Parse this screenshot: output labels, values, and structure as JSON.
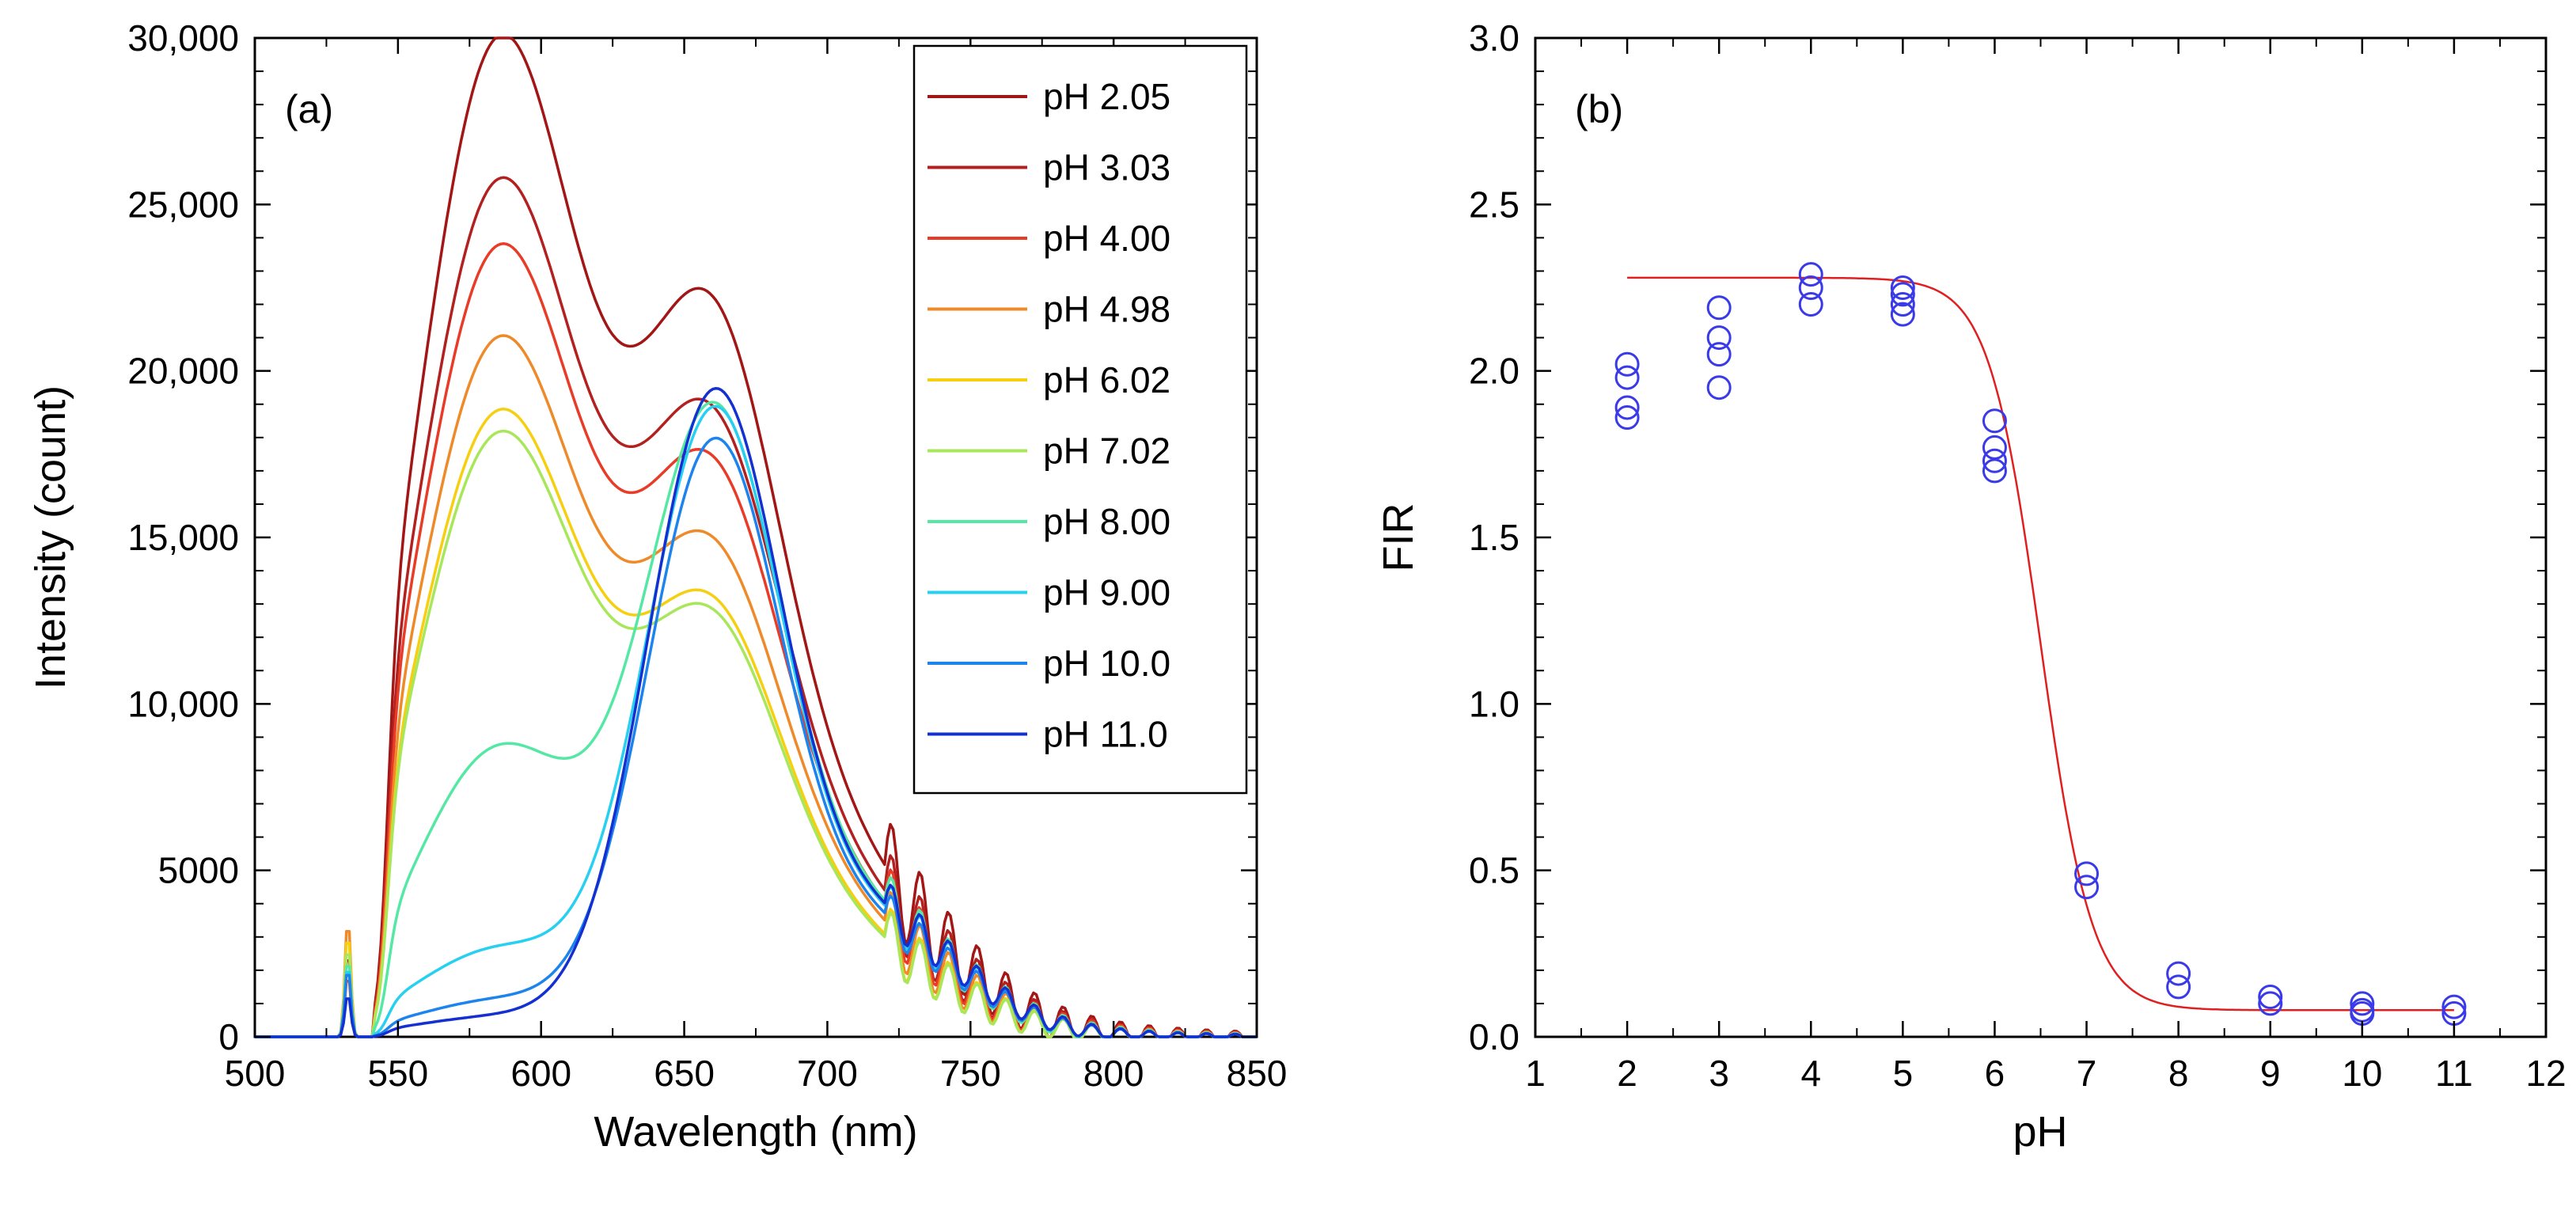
{
  "chart_data": [
    {
      "type": "line",
      "panel_label": "(a)",
      "xlabel": "Wavelength (nm)",
      "ylabel": "Intensity (count)",
      "xlim": [
        500,
        850
      ],
      "ylim": [
        0,
        30000
      ],
      "xticks": [
        500,
        550,
        600,
        650,
        700,
        750,
        800,
        850
      ],
      "xtick_labels": [
        "500",
        "550",
        "600",
        "650",
        "700",
        "750",
        "800",
        "850"
      ],
      "yticks": [
        0,
        5000,
        10000,
        15000,
        20000,
        25000,
        30000
      ],
      "ytick_labels": [
        "0",
        "5000",
        "10,000",
        "15,000",
        "20,000",
        "25,000",
        "30,000"
      ],
      "grid": false,
      "legend_position": "top-right",
      "series": [
        {
          "name": "pH 2.05",
          "color": "#a31616",
          "shape": {
            "peak1": 27300,
            "peak2": 13200,
            "sh": 2600
          }
        },
        {
          "name": "pH 3.03",
          "color": "#b32020",
          "shape": {
            "peak1": 23400,
            "peak2": 11200,
            "sh": 2200
          }
        },
        {
          "name": "pH 4.00",
          "color": "#e83c28",
          "shape": {
            "peak1": 21600,
            "peak2": 10300,
            "sh": 1900
          }
        },
        {
          "name": "pH 4.98",
          "color": "#ef8a2a",
          "shape": {
            "peak1": 19100,
            "peak2": 8700,
            "sh": 3600
          }
        },
        {
          "name": "pH 6.02",
          "color": "#f5cf10",
          "shape": {
            "peak1": 17100,
            "peak2": 7600,
            "sh": 3200
          }
        },
        {
          "name": "pH 7.02",
          "color": "#a8e65a",
          "shape": {
            "peak1": 16500,
            "peak2": 7400,
            "sh": 2800
          }
        },
        {
          "name": "pH 8.00",
          "color": "#55e8a4",
          "shape": {
            "peak1": 7900,
            "peak2": 16200,
            "sh": 2400
          }
        },
        {
          "name": "pH 9.00",
          "color": "#27d0f0",
          "shape": {
            "peak1": 2400,
            "peak2": 17800,
            "sh": 2200
          }
        },
        {
          "name": "pH 10.0",
          "color": "#1d84ee",
          "shape": {
            "peak1": 1000,
            "peak2": 17300,
            "sh": 2100
          }
        },
        {
          "name": "pH 11.0",
          "color": "#1530d0",
          "shape": {
            "peak1": 550,
            "peak2": 18900,
            "sh": 1300
          }
        }
      ]
    },
    {
      "type": "scatter",
      "panel_label": "(b)",
      "xlabel": "pH",
      "ylabel": "FIR",
      "xlim": [
        1,
        12
      ],
      "ylim": [
        0,
        3.0
      ],
      "xticks": [
        1,
        2,
        3,
        4,
        5,
        6,
        7,
        8,
        9,
        10,
        11,
        12
      ],
      "xtick_labels": [
        "1",
        "2",
        "3",
        "4",
        "5",
        "6",
        "7",
        "8",
        "9",
        "10",
        "11",
        "12"
      ],
      "yticks": [
        0,
        0.5,
        1.0,
        1.5,
        2.0,
        2.5,
        3.0
      ],
      "ytick_labels": [
        "0.0",
        "0.5",
        "1.0",
        "1.5",
        "2.0",
        "2.5",
        "3.0"
      ],
      "grid": false,
      "points": {
        "color": "#3a3ae8",
        "x": [
          2,
          2,
          2,
          2,
          3,
          3,
          3,
          3,
          4,
          4,
          4,
          5,
          5,
          5,
          5,
          6,
          6,
          6,
          6,
          7,
          7,
          8,
          8,
          9,
          9,
          10,
          10,
          10,
          11,
          11
        ],
        "y": [
          2.02,
          1.98,
          1.89,
          1.86,
          2.19,
          2.1,
          2.05,
          1.95,
          2.29,
          2.25,
          2.2,
          2.25,
          2.23,
          2.2,
          2.17,
          1.85,
          1.77,
          1.73,
          1.7,
          0.49,
          0.45,
          0.19,
          0.15,
          0.12,
          0.1,
          0.1,
          0.08,
          0.07,
          0.09,
          0.07
        ]
      },
      "fit": {
        "name": "sigmoid fit",
        "color": "#e02020",
        "top": 2.28,
        "bottom": 0.08,
        "x0": 6.5,
        "slope": 0.28,
        "x_range": [
          2,
          11
        ]
      }
    }
  ]
}
